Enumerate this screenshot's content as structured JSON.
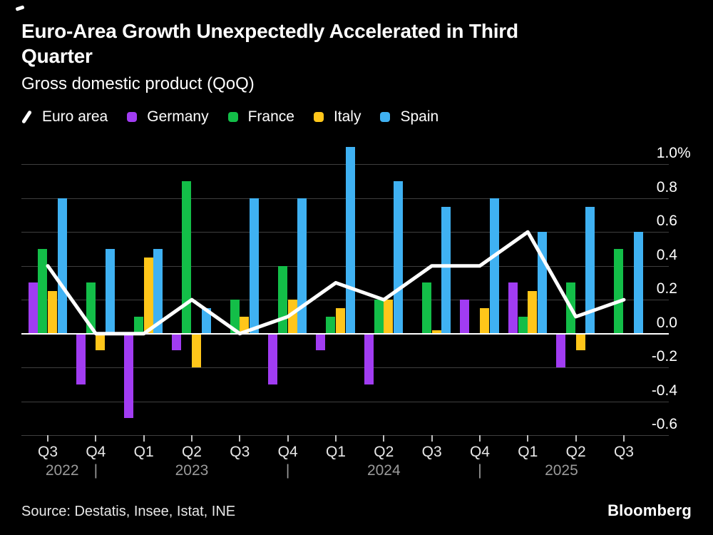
{
  "header": {
    "title": "Euro-Area Growth Unexpectedly Accelerated in Third Quarter",
    "subtitle": "Gross domestic product (QoQ)"
  },
  "legend": [
    {
      "label": "Euro area",
      "marker": "line-slash",
      "color": "#ffffff"
    },
    {
      "label": "Germany",
      "marker": "swatch",
      "color": "#A13CF2"
    },
    {
      "label": "France",
      "marker": "swatch",
      "color": "#13BE48"
    },
    {
      "label": "Italy",
      "marker": "swatch",
      "color": "#FFC61A"
    },
    {
      "label": "Spain",
      "marker": "swatch",
      "color": "#3FB1F2"
    }
  ],
  "chart_data": {
    "type": "bar",
    "title": "Euro-Area Growth Unexpectedly Accelerated in Third Quarter",
    "subtitle": "Gross domestic product (QoQ)",
    "unit": "%",
    "categories": [
      "Q3 2022",
      "Q4 2022",
      "Q1 2023",
      "Q2 2023",
      "Q3 2023",
      "Q4 2023",
      "Q1 2024",
      "Q2 2024",
      "Q3 2024",
      "Q4 2024",
      "Q1 2025",
      "Q2 2025",
      "Q3 2025"
    ],
    "x_quarter_labels": [
      "Q3",
      "Q4",
      "Q1",
      "Q2",
      "Q3",
      "Q4",
      "Q1",
      "Q2",
      "Q3",
      "Q4",
      "Q1",
      "Q2",
      "Q3"
    ],
    "years": [
      {
        "label": "2022",
        "at_index": 0.3
      },
      {
        "label": "2023",
        "at_index": 3
      },
      {
        "label": "2024",
        "at_index": 7
      },
      {
        "label": "2025",
        "at_index": 10.7
      }
    ],
    "year_separator": "|",
    "year_separators_at_index": [
      1,
      5,
      9
    ],
    "line_series": {
      "name": "Euro area",
      "color": "#ffffff",
      "values": [
        0.4,
        0.0,
        0.0,
        0.2,
        0.0,
        0.1,
        0.3,
        0.2,
        0.4,
        0.4,
        0.6,
        0.1,
        0.2
      ]
    },
    "series": [
      {
        "name": "Germany",
        "color": "#A13CF2",
        "values": [
          0.3,
          -0.3,
          -0.5,
          -0.1,
          0.0,
          -0.3,
          -0.1,
          -0.3,
          0.0,
          0.2,
          0.3,
          -0.2,
          0.0
        ]
      },
      {
        "name": "France",
        "color": "#13BE48",
        "values": [
          0.5,
          0.3,
          0.1,
          0.9,
          0.2,
          0.4,
          0.1,
          0.2,
          0.3,
          0.0,
          0.1,
          0.3,
          0.5
        ]
      },
      {
        "name": "Italy",
        "color": "#FFC61A",
        "values": [
          0.25,
          -0.1,
          0.45,
          -0.2,
          0.1,
          0.2,
          0.15,
          0.2,
          0.02,
          0.15,
          0.25,
          -0.1,
          0.0
        ]
      },
      {
        "name": "Spain",
        "color": "#3FB1F2",
        "values": [
          0.8,
          0.5,
          0.5,
          0.15,
          0.8,
          0.8,
          1.1,
          0.9,
          0.75,
          0.8,
          0.6,
          0.75,
          0.6
        ]
      }
    ],
    "ylim": [
      -0.6,
      1.1
    ],
    "y_ticks": [
      1.0,
      0.8,
      0.6,
      0.4,
      0.2,
      0.0,
      -0.2,
      -0.4,
      -0.6
    ],
    "y_tick_labels": [
      "1.0%",
      "0.8",
      "0.6",
      "0.4",
      "0.2",
      "0.0",
      "-0.2",
      "-0.4",
      "-0.6"
    ],
    "grid": "horizontal",
    "legend_position": "top"
  },
  "footer": {
    "source": "Source: Destatis, Insee, Istat, INE",
    "brand": "Bloomberg"
  }
}
